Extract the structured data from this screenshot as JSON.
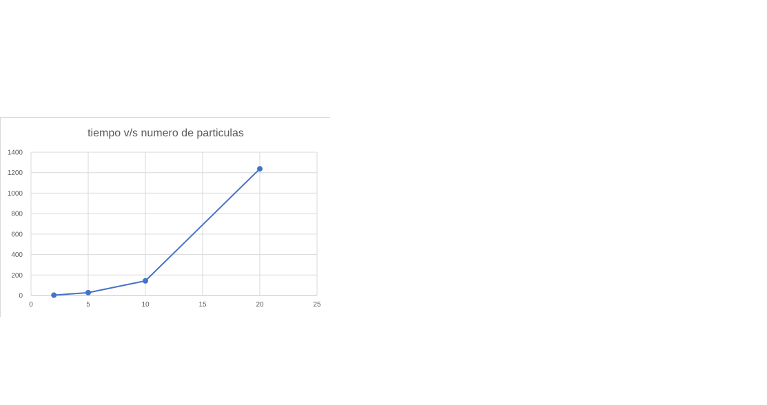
{
  "chart_data": {
    "type": "line",
    "title": "tiempo v/s numero de particulas",
    "xlabel": "",
    "ylabel": "",
    "xlim": [
      0,
      25
    ],
    "ylim": [
      0,
      1400
    ],
    "x_ticks": [
      0,
      5,
      10,
      15,
      20,
      25
    ],
    "y_ticks": [
      0,
      200,
      400,
      600,
      800,
      1000,
      1200,
      1400
    ],
    "grid": true,
    "series": [
      {
        "name": "tiempo",
        "color": "#4472C4",
        "x": [
          2,
          5,
          10,
          20
        ],
        "y": [
          3,
          28,
          143,
          1238
        ]
      }
    ]
  }
}
